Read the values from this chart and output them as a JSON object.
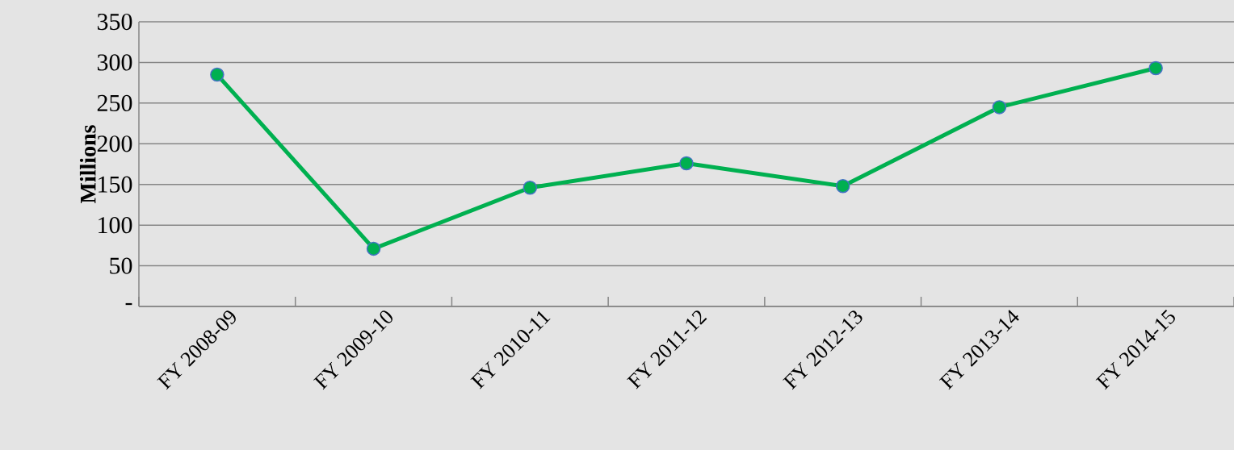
{
  "chart_data": {
    "type": "line",
    "ylabel": "Millions",
    "categories": [
      "FY 2008-09",
      "FY 2009-10",
      "FY 2010-11",
      "FY 2011-12",
      "FY 2012-13",
      "FY 2013-14",
      "FY 2014-15"
    ],
    "values": [
      285,
      71,
      146,
      176,
      148,
      245,
      293
    ],
    "color": "#00b050",
    "marker": "circle",
    "ylim": [
      0,
      350
    ],
    "yticks": [
      {
        "value": 0,
        "label": "-"
      },
      50,
      100,
      150,
      200,
      250,
      300,
      350
    ],
    "grid": "y"
  }
}
